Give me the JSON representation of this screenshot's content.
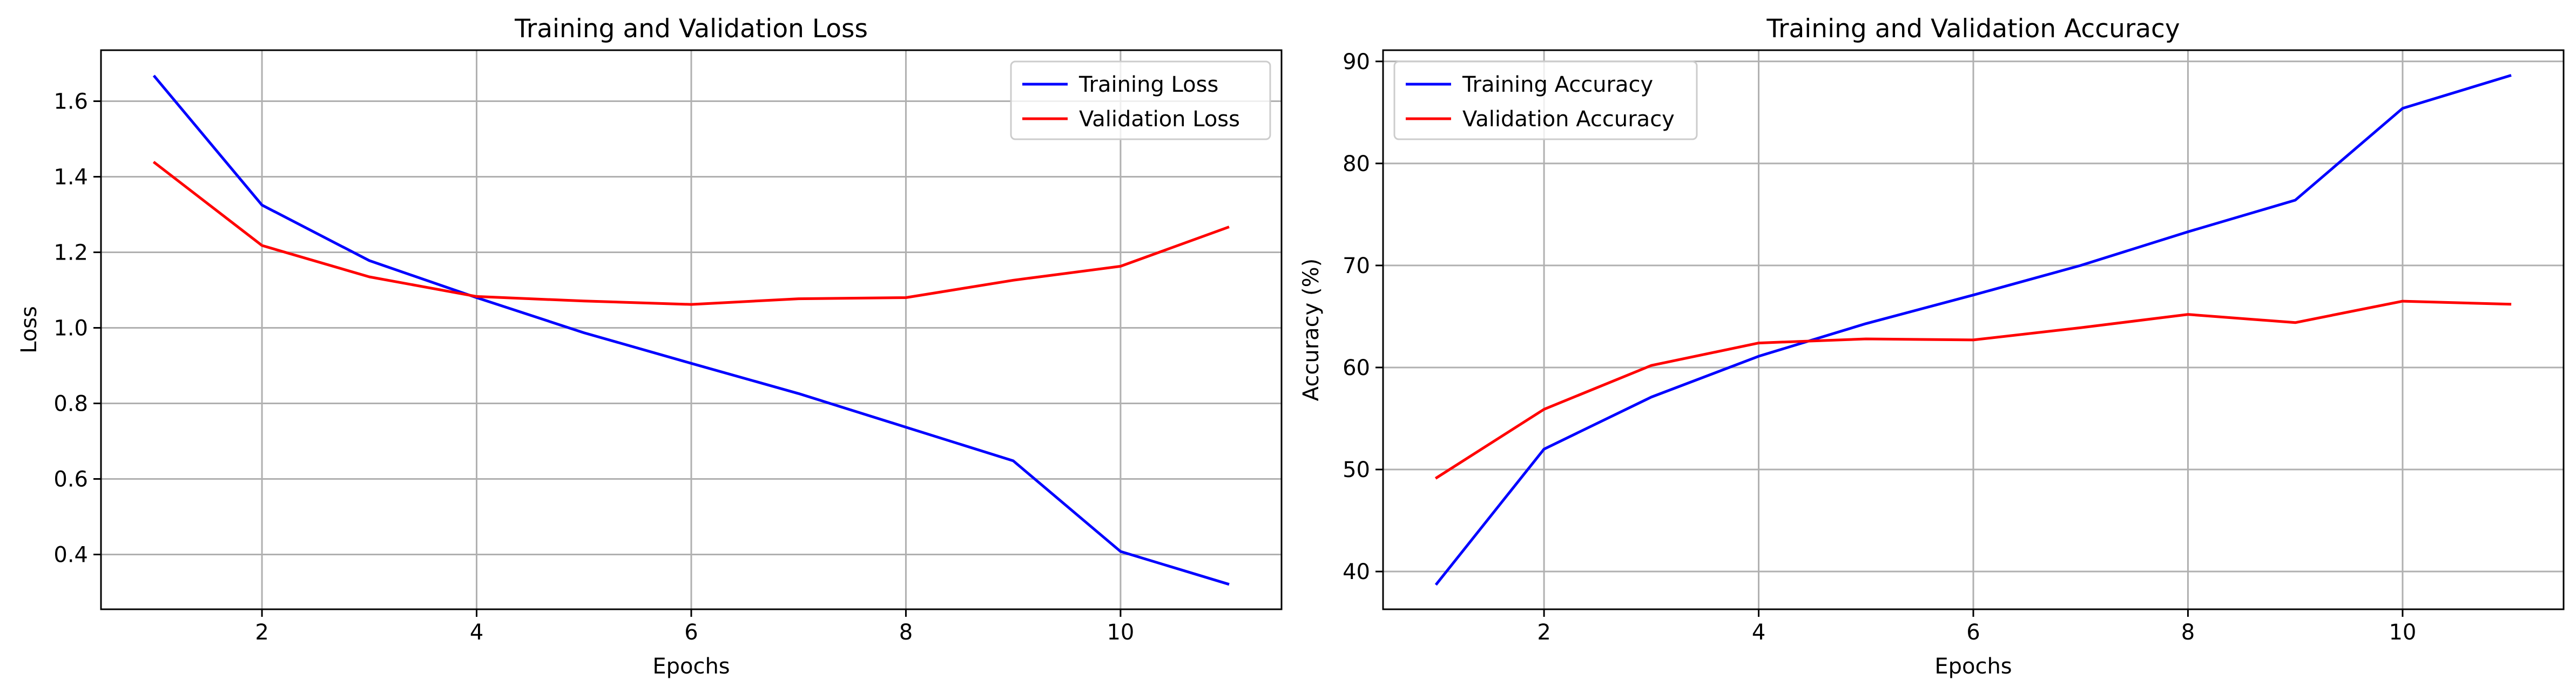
{
  "chart_data": [
    {
      "type": "line",
      "title": "Training and Validation Loss",
      "xlabel": "Epochs",
      "ylabel": "Loss",
      "xlim": [
        0.5,
        11.5
      ],
      "ylim": [
        0.255,
        1.735
      ],
      "xticks": [
        2,
        4,
        6,
        8,
        10
      ],
      "xtick_labels": [
        "2",
        "4",
        "6",
        "8",
        "10"
      ],
      "yticks": [
        0.4,
        0.6,
        0.8,
        1.0,
        1.2,
        1.4,
        1.6
      ],
      "ytick_labels": [
        "0.4",
        "0.6",
        "0.8",
        "1.0",
        "1.2",
        "1.4",
        "1.6"
      ],
      "grid": true,
      "legend_position": "top-right",
      "x": [
        1,
        2,
        3,
        4,
        5,
        6,
        7,
        8,
        9,
        10,
        11
      ],
      "series": [
        {
          "name": "Training Loss",
          "color": "#0000ff",
          "values": [
            1.665,
            1.325,
            1.178,
            1.08,
            0.987,
            0.906,
            0.826,
            0.737,
            0.648,
            0.408,
            0.322
          ]
        },
        {
          "name": "Validation Loss",
          "color": "#ff0000",
          "values": [
            1.437,
            1.218,
            1.135,
            1.083,
            1.071,
            1.062,
            1.077,
            1.08,
            1.126,
            1.163,
            1.266
          ]
        }
      ]
    },
    {
      "type": "line",
      "title": "Training and Validation Accuracy",
      "xlabel": "Epochs",
      "ylabel": "Accuracy (%)",
      "xlim": [
        0.5,
        11.5
      ],
      "ylim": [
        36.3,
        91.1
      ],
      "xticks": [
        2,
        4,
        6,
        8,
        10
      ],
      "xtick_labels": [
        "2",
        "4",
        "6",
        "8",
        "10"
      ],
      "yticks": [
        40,
        50,
        60,
        70,
        80,
        90
      ],
      "ytick_labels": [
        "40",
        "50",
        "60",
        "70",
        "80",
        "90"
      ],
      "grid": true,
      "legend_position": "top-left",
      "x": [
        1,
        2,
        3,
        4,
        5,
        6,
        7,
        8,
        9,
        10,
        11
      ],
      "series": [
        {
          "name": "Training Accuracy",
          "color": "#0000ff",
          "values": [
            38.8,
            52.0,
            57.1,
            61.1,
            64.3,
            67.1,
            70.0,
            73.3,
            76.4,
            85.4,
            88.6
          ]
        },
        {
          "name": "Validation Accuracy",
          "color": "#ff0000",
          "values": [
            49.2,
            55.9,
            60.2,
            62.4,
            62.8,
            62.7,
            63.9,
            65.2,
            64.4,
            66.5,
            66.2
          ]
        }
      ]
    }
  ]
}
